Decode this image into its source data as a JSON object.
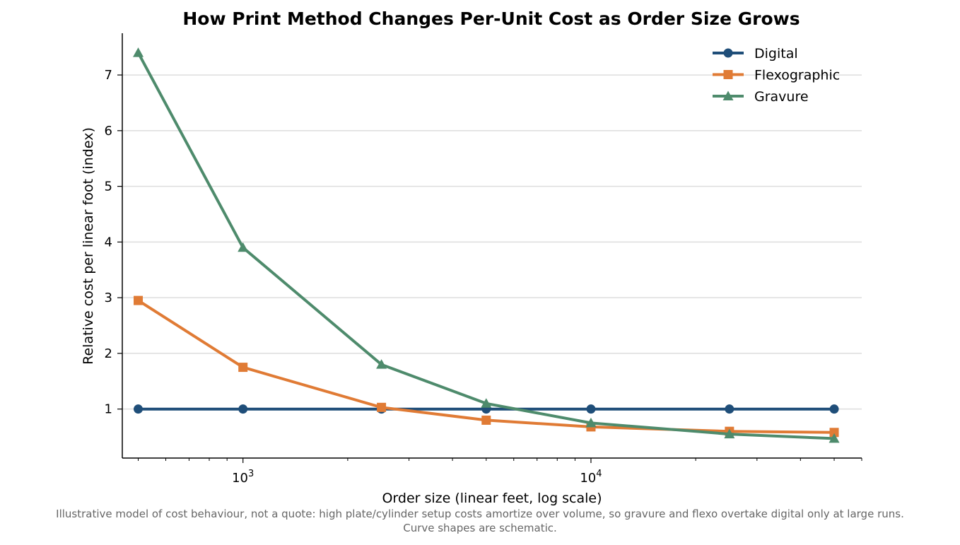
{
  "chart_data": {
    "type": "line",
    "title": "How Print Method Changes Per-Unit Cost as Order Size Grows",
    "xlabel": "Order size (linear feet, log scale)",
    "ylabel": "Relative cost per linear foot (index)",
    "xscale": "log",
    "xlim": [
      450,
      60000
    ],
    "ylim": [
      0.12,
      7.75
    ],
    "x_ticks": [
      {
        "value": 1000,
        "base": "10",
        "exp": "3"
      },
      {
        "value": 10000,
        "base": "10",
        "exp": "4"
      }
    ],
    "y_ticks": [
      "1",
      "2",
      "3",
      "4",
      "5",
      "6",
      "7"
    ],
    "grid": "horizontal",
    "legend_position": "top-right",
    "x": [
      500,
      1000,
      2500,
      5000,
      10000,
      25000,
      50000
    ],
    "series": [
      {
        "name": "Digital",
        "color": "#1f4e79",
        "marker": "circle",
        "values": [
          1.0,
          1.0,
          1.0,
          1.0,
          1.0,
          1.0,
          1.0
        ]
      },
      {
        "name": "Flexographic",
        "color": "#e07b35",
        "marker": "square",
        "values": [
          2.95,
          1.75,
          1.03,
          0.8,
          0.68,
          0.6,
          0.58
        ]
      },
      {
        "name": "Gravure",
        "color": "#4e8b6c",
        "marker": "triangle",
        "values": [
          7.4,
          3.9,
          1.8,
          1.1,
          0.75,
          0.55,
          0.47
        ]
      }
    ],
    "caption_lines": [
      "Illustrative model of cost behaviour, not a quote: high plate/cylinder setup costs amortize over volume, so gravure and flexo overtake digital only at large runs.",
      "Curve shapes are schematic."
    ]
  }
}
